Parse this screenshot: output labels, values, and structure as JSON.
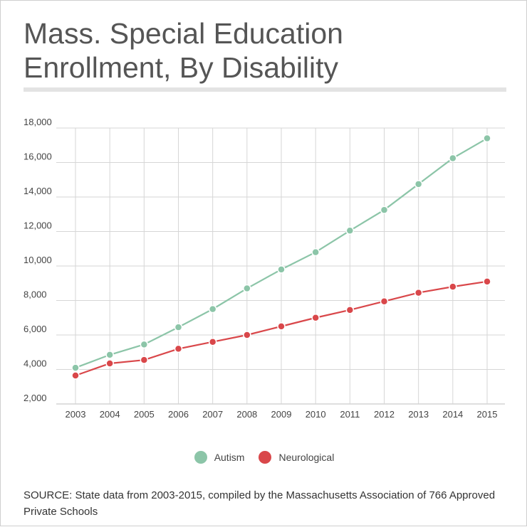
{
  "title_line1": "Mass. Special Education",
  "title_line2": "Enrollment, By Disability",
  "source": "SOURCE: State data from 2003-2015, compiled by the Massachusetts Association of 766 Approved Private Schools",
  "chart_data": {
    "type": "line",
    "x": [
      "2003",
      "2004",
      "2005",
      "2006",
      "2007",
      "2008",
      "2009",
      "2010",
      "2011",
      "2012",
      "2013",
      "2014",
      "2015"
    ],
    "ylim": [
      2000,
      18000
    ],
    "yticks": [
      "2,000",
      "4,000",
      "6,000",
      "8,000",
      "10,000",
      "12,000",
      "14,000",
      "16,000",
      "18,000"
    ],
    "grid": true,
    "legend_position": "bottom",
    "series": [
      {
        "name": "Autism",
        "color": "#8cc5a8",
        "values": [
          4100,
          4850,
          5450,
          6450,
          7500,
          8700,
          9800,
          10800,
          12050,
          13250,
          14750,
          16250,
          17400
        ]
      },
      {
        "name": "Neurological",
        "color": "#d9474a",
        "values": [
          3650,
          4350,
          4550,
          5200,
          5600,
          6000,
          6500,
          7000,
          7450,
          7950,
          8450,
          8800,
          9100
        ]
      }
    ]
  }
}
